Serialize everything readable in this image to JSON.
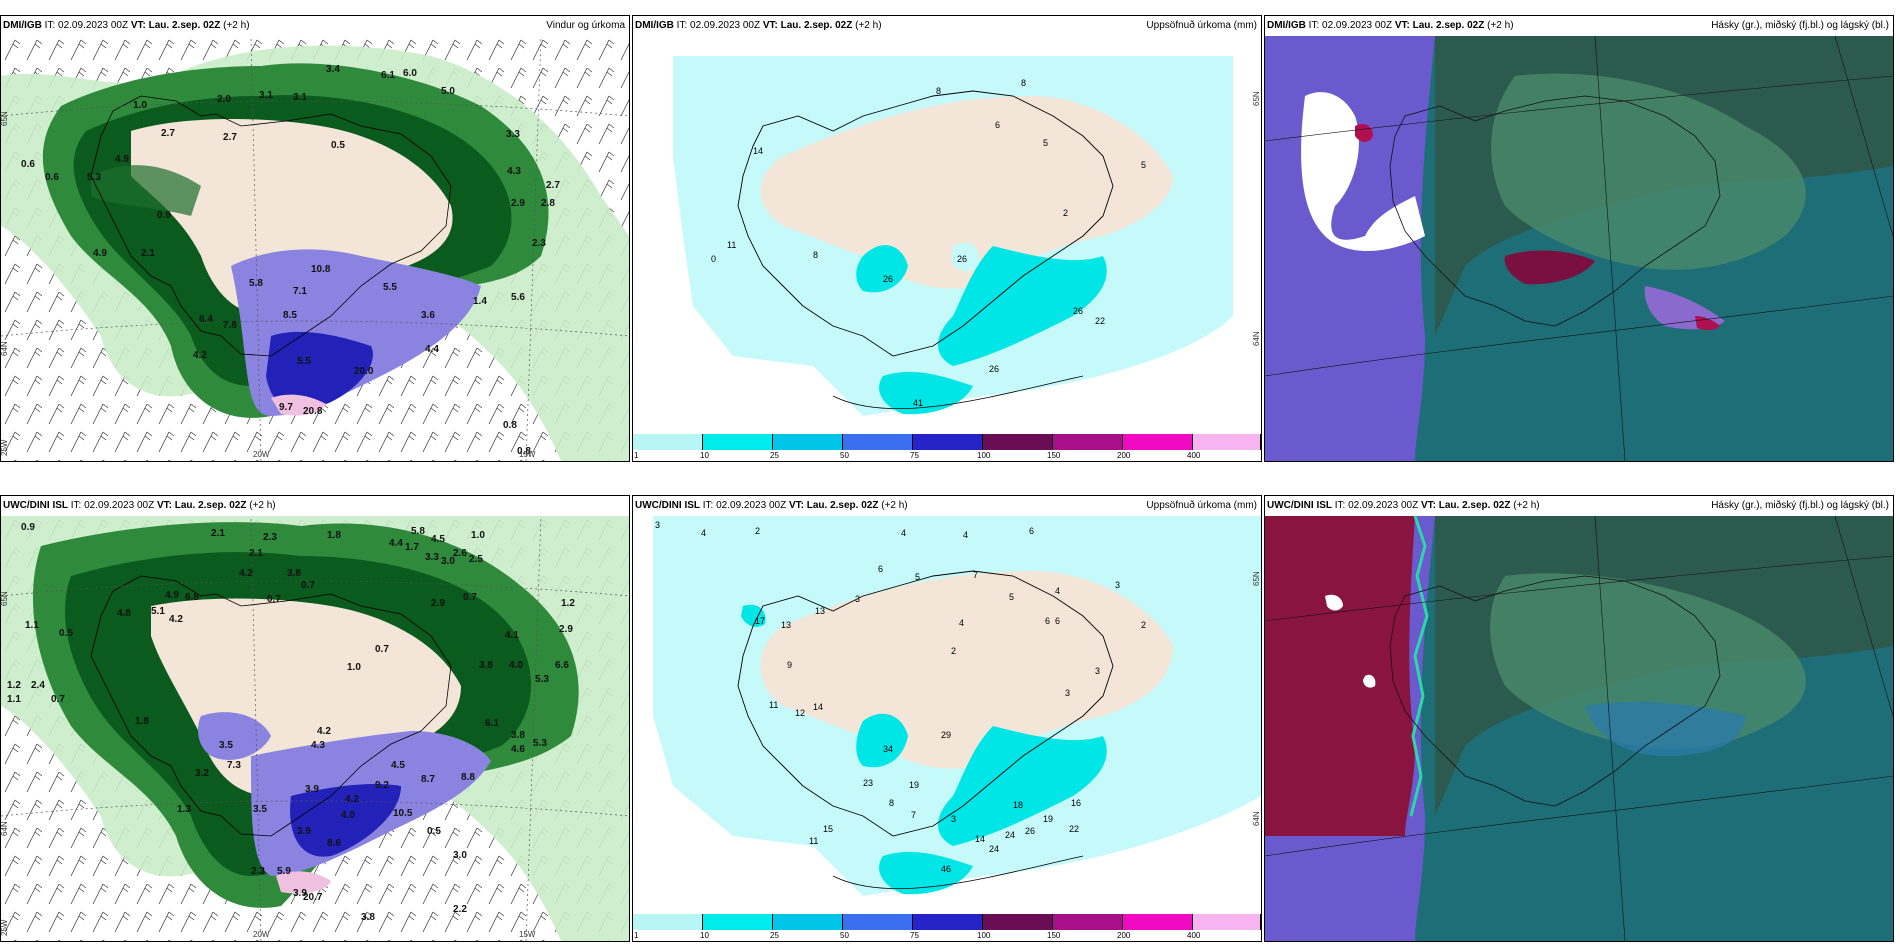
{
  "panels": [
    {
      "id": "dmi-wind",
      "model": "DMI/IGB",
      "it_label": "IT:",
      "it_value": "02.09.2023 00Z",
      "vt_label": "VT: Lau. 2.sep. 02Z",
      "lead": "(+2 h)",
      "title_right": "Vindur og úrkoma",
      "values": [
        "3.4",
        "6.1",
        "6.0",
        "2.0",
        "3.1",
        "3.1",
        "5.0",
        "1.0",
        "2.7",
        "2.7",
        "0.5",
        "3.3",
        "4.9",
        "5.3",
        "0.6",
        "0.6",
        "4.3",
        "2.7",
        "2.9",
        "2.8",
        "0.9",
        "4.9",
        "2.1",
        "2.3",
        "5.8",
        "10.8",
        "7.1",
        "5.5",
        "1.4",
        "3.6",
        "5.6",
        "7.8",
        "8.5",
        "6.4",
        "4.2",
        "5.5",
        "4.4",
        "20.0",
        "9.7",
        "20.8",
        "0.8",
        "0.8"
      ],
      "axis": [
        "65N",
        "64N",
        "25W",
        "20W",
        "15W"
      ]
    },
    {
      "id": "dmi-precip",
      "model": "DMI/IGB",
      "it_label": "IT:",
      "it_value": "02.09.2023 00Z",
      "vt_label": "VT: Lau. 2.sep. 02Z",
      "lead": "(+2 h)",
      "title_right": "Uppsöfnuð úrkoma (mm)",
      "values": [
        "8",
        "8",
        "6",
        "5",
        "5",
        "14",
        "2",
        "0",
        "11",
        "8",
        "26",
        "26",
        "26",
        "22",
        "26",
        "41"
      ],
      "axis": [
        "65N",
        "64N"
      ],
      "colorbar": [
        "1",
        "10",
        "25",
        "50",
        "75",
        "100",
        "150",
        "200",
        "400"
      ]
    },
    {
      "id": "dmi-cloud",
      "model": "DMI/IGB",
      "it_label": "IT:",
      "it_value": "02.09.2023 00Z",
      "vt_label": "VT: Lau. 2.sep. 02Z",
      "lead": "(+2 h)",
      "title_right": "Hásky (gr.), miðský (fj.bl.) og lágský (bl.)"
    },
    {
      "id": "uwc-wind",
      "model": "UWC/DINI ISL",
      "it_label": "IT:",
      "it_value": "02.09.2023 00Z",
      "vt_label": "VT: Lau. 2.sep. 02Z",
      "lead": "(+2 h)",
      "title_right": "",
      "values": [
        "0.9",
        "2.1",
        "2.3",
        "1.8",
        "5.8",
        "4.5",
        "1.0",
        "4.4",
        "1.7",
        "2.6",
        "2.1",
        "3.3",
        "3.0",
        "2.5",
        "4.2",
        "3.8",
        "0.7",
        "0.7",
        "4.9",
        "6.8",
        "5.1",
        "4.2",
        "4.8",
        "2.9",
        "0.7",
        "4.1",
        "2.9",
        "1.2",
        "1.1",
        "0.5",
        "2.4",
        "0.7",
        "1.2",
        "1.1",
        "1.0",
        "0.7",
        "5.3",
        "6.6",
        "3.8",
        "4.0",
        "1.8",
        "3.5",
        "7.3",
        "4.2",
        "4.3",
        "6.1",
        "5.3",
        "3.8",
        "4.6",
        "3.2",
        "1.3",
        "4.5",
        "3.9",
        "9.2",
        "8.7",
        "8.8",
        "4.2",
        "10.5",
        "4.0",
        "0.5",
        "3.0",
        "3.5",
        "3.9",
        "8.6",
        "2.2",
        "2.3",
        "5.9",
        "3.9",
        "20.7",
        "3.8"
      ],
      "axis": [
        "65N",
        "64N",
        "25W",
        "20W",
        "15W"
      ]
    },
    {
      "id": "uwc-precip",
      "model": "UWC/DINI ISL",
      "it_label": "IT:",
      "it_value": "02.09.2023 00Z",
      "vt_label": "VT: Lau. 2.sep. 02Z",
      "lead": "(+2 h)",
      "title_right": "Uppsöfnuð úrkoma (mm)",
      "values": [
        "3",
        "4",
        "2",
        "4",
        "4",
        "6",
        "6",
        "5",
        "3",
        "17",
        "13",
        "13",
        "7",
        "5",
        "4",
        "3",
        "2",
        "6",
        "6",
        "4",
        "2",
        "3",
        "3",
        "9",
        "11",
        "12",
        "14",
        "34",
        "29",
        "23",
        "19",
        "15",
        "11",
        "8",
        "7",
        "18",
        "19",
        "24",
        "26",
        "16",
        "22",
        "14",
        "24",
        "46",
        "3"
      ],
      "axis": [
        "65N",
        "64N"
      ],
      "colorbar": [
        "1",
        "10",
        "25",
        "50",
        "75",
        "100",
        "150",
        "200",
        "400"
      ]
    },
    {
      "id": "uwc-cloud",
      "model": "UWC/DINI ISL",
      "it_label": "IT:",
      "it_value": "02.09.2023 00Z",
      "vt_label": "VT: Lau. 2.sep. 02Z",
      "lead": "(+2 h)",
      "title_right": "Hásky (gr.), miðský (fj.bl.) og lágský (bl.)"
    }
  ],
  "colors": {
    "colorbar": [
      "#b8f6f6",
      "#00ecec",
      "#00c4e8",
      "#3a6ff0",
      "#2424c8",
      "#6a0d55",
      "#a8108a",
      "#f00ac4",
      "#f7b4f0"
    ],
    "land": "#f3e6d8",
    "precip_light": "#c6fafa",
    "precip_mid": "#00e6e6",
    "wind_green_dark": "#0b5a1e",
    "wind_green_light": "#c9ecc9",
    "cloud_teal": "#1e6e78",
    "cloud_purple": "#6a5acd",
    "cloud_red": "#8a1440"
  }
}
